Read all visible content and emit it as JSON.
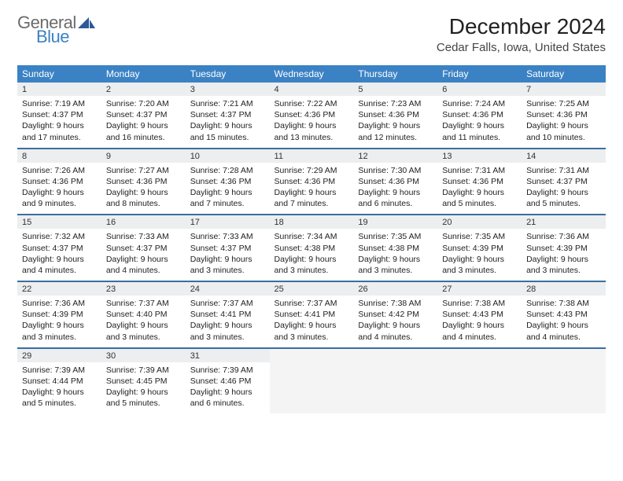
{
  "logo": {
    "word1": "General",
    "word2": "Blue",
    "icon_color": "#2a5a99"
  },
  "title": "December 2024",
  "location": "Cedar Falls, Iowa, United States",
  "header_bg": "#3b82c4",
  "header_fg": "#ffffff",
  "daynum_bg": "#eceeef",
  "rule_color": "#3b6ea0",
  "weekdays": [
    "Sunday",
    "Monday",
    "Tuesday",
    "Wednesday",
    "Thursday",
    "Friday",
    "Saturday"
  ],
  "weeks": [
    [
      {
        "n": "1",
        "sr": "Sunrise: 7:19 AM",
        "ss": "Sunset: 4:37 PM",
        "d1": "Daylight: 9 hours",
        "d2": "and 17 minutes."
      },
      {
        "n": "2",
        "sr": "Sunrise: 7:20 AM",
        "ss": "Sunset: 4:37 PM",
        "d1": "Daylight: 9 hours",
        "d2": "and 16 minutes."
      },
      {
        "n": "3",
        "sr": "Sunrise: 7:21 AM",
        "ss": "Sunset: 4:37 PM",
        "d1": "Daylight: 9 hours",
        "d2": "and 15 minutes."
      },
      {
        "n": "4",
        "sr": "Sunrise: 7:22 AM",
        "ss": "Sunset: 4:36 PM",
        "d1": "Daylight: 9 hours",
        "d2": "and 13 minutes."
      },
      {
        "n": "5",
        "sr": "Sunrise: 7:23 AM",
        "ss": "Sunset: 4:36 PM",
        "d1": "Daylight: 9 hours",
        "d2": "and 12 minutes."
      },
      {
        "n": "6",
        "sr": "Sunrise: 7:24 AM",
        "ss": "Sunset: 4:36 PM",
        "d1": "Daylight: 9 hours",
        "d2": "and 11 minutes."
      },
      {
        "n": "7",
        "sr": "Sunrise: 7:25 AM",
        "ss": "Sunset: 4:36 PM",
        "d1": "Daylight: 9 hours",
        "d2": "and 10 minutes."
      }
    ],
    [
      {
        "n": "8",
        "sr": "Sunrise: 7:26 AM",
        "ss": "Sunset: 4:36 PM",
        "d1": "Daylight: 9 hours",
        "d2": "and 9 minutes."
      },
      {
        "n": "9",
        "sr": "Sunrise: 7:27 AM",
        "ss": "Sunset: 4:36 PM",
        "d1": "Daylight: 9 hours",
        "d2": "and 8 minutes."
      },
      {
        "n": "10",
        "sr": "Sunrise: 7:28 AM",
        "ss": "Sunset: 4:36 PM",
        "d1": "Daylight: 9 hours",
        "d2": "and 7 minutes."
      },
      {
        "n": "11",
        "sr": "Sunrise: 7:29 AM",
        "ss": "Sunset: 4:36 PM",
        "d1": "Daylight: 9 hours",
        "d2": "and 7 minutes."
      },
      {
        "n": "12",
        "sr": "Sunrise: 7:30 AM",
        "ss": "Sunset: 4:36 PM",
        "d1": "Daylight: 9 hours",
        "d2": "and 6 minutes."
      },
      {
        "n": "13",
        "sr": "Sunrise: 7:31 AM",
        "ss": "Sunset: 4:36 PM",
        "d1": "Daylight: 9 hours",
        "d2": "and 5 minutes."
      },
      {
        "n": "14",
        "sr": "Sunrise: 7:31 AM",
        "ss": "Sunset: 4:37 PM",
        "d1": "Daylight: 9 hours",
        "d2": "and 5 minutes."
      }
    ],
    [
      {
        "n": "15",
        "sr": "Sunrise: 7:32 AM",
        "ss": "Sunset: 4:37 PM",
        "d1": "Daylight: 9 hours",
        "d2": "and 4 minutes."
      },
      {
        "n": "16",
        "sr": "Sunrise: 7:33 AM",
        "ss": "Sunset: 4:37 PM",
        "d1": "Daylight: 9 hours",
        "d2": "and 4 minutes."
      },
      {
        "n": "17",
        "sr": "Sunrise: 7:33 AM",
        "ss": "Sunset: 4:37 PM",
        "d1": "Daylight: 9 hours",
        "d2": "and 3 minutes."
      },
      {
        "n": "18",
        "sr": "Sunrise: 7:34 AM",
        "ss": "Sunset: 4:38 PM",
        "d1": "Daylight: 9 hours",
        "d2": "and 3 minutes."
      },
      {
        "n": "19",
        "sr": "Sunrise: 7:35 AM",
        "ss": "Sunset: 4:38 PM",
        "d1": "Daylight: 9 hours",
        "d2": "and 3 minutes."
      },
      {
        "n": "20",
        "sr": "Sunrise: 7:35 AM",
        "ss": "Sunset: 4:39 PM",
        "d1": "Daylight: 9 hours",
        "d2": "and 3 minutes."
      },
      {
        "n": "21",
        "sr": "Sunrise: 7:36 AM",
        "ss": "Sunset: 4:39 PM",
        "d1": "Daylight: 9 hours",
        "d2": "and 3 minutes."
      }
    ],
    [
      {
        "n": "22",
        "sr": "Sunrise: 7:36 AM",
        "ss": "Sunset: 4:39 PM",
        "d1": "Daylight: 9 hours",
        "d2": "and 3 minutes."
      },
      {
        "n": "23",
        "sr": "Sunrise: 7:37 AM",
        "ss": "Sunset: 4:40 PM",
        "d1": "Daylight: 9 hours",
        "d2": "and 3 minutes."
      },
      {
        "n": "24",
        "sr": "Sunrise: 7:37 AM",
        "ss": "Sunset: 4:41 PM",
        "d1": "Daylight: 9 hours",
        "d2": "and 3 minutes."
      },
      {
        "n": "25",
        "sr": "Sunrise: 7:37 AM",
        "ss": "Sunset: 4:41 PM",
        "d1": "Daylight: 9 hours",
        "d2": "and 3 minutes."
      },
      {
        "n": "26",
        "sr": "Sunrise: 7:38 AM",
        "ss": "Sunset: 4:42 PM",
        "d1": "Daylight: 9 hours",
        "d2": "and 4 minutes."
      },
      {
        "n": "27",
        "sr": "Sunrise: 7:38 AM",
        "ss": "Sunset: 4:43 PM",
        "d1": "Daylight: 9 hours",
        "d2": "and 4 minutes."
      },
      {
        "n": "28",
        "sr": "Sunrise: 7:38 AM",
        "ss": "Sunset: 4:43 PM",
        "d1": "Daylight: 9 hours",
        "d2": "and 4 minutes."
      }
    ],
    [
      {
        "n": "29",
        "sr": "Sunrise: 7:39 AM",
        "ss": "Sunset: 4:44 PM",
        "d1": "Daylight: 9 hours",
        "d2": "and 5 minutes."
      },
      {
        "n": "30",
        "sr": "Sunrise: 7:39 AM",
        "ss": "Sunset: 4:45 PM",
        "d1": "Daylight: 9 hours",
        "d2": "and 5 minutes."
      },
      {
        "n": "31",
        "sr": "Sunrise: 7:39 AM",
        "ss": "Sunset: 4:46 PM",
        "d1": "Daylight: 9 hours",
        "d2": "and 6 minutes."
      },
      null,
      null,
      null,
      null
    ]
  ]
}
